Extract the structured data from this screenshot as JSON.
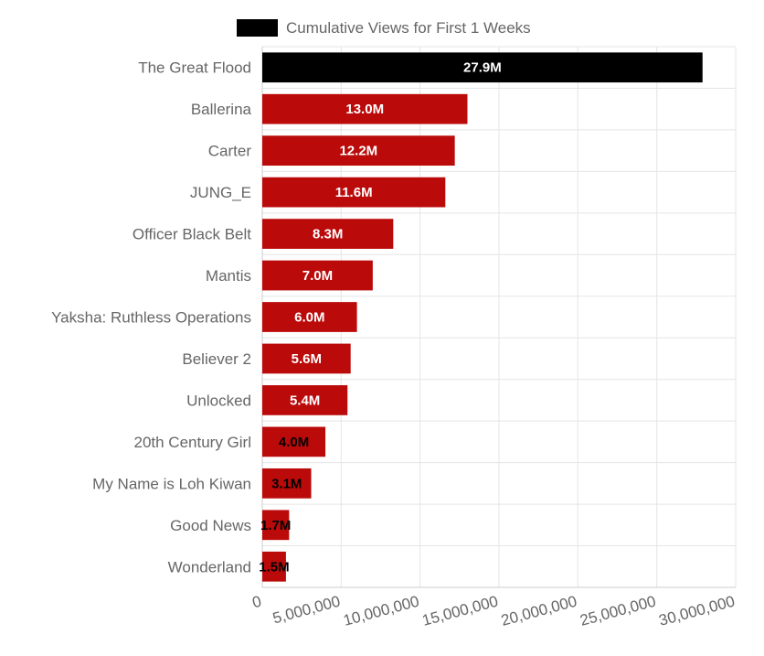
{
  "chart_data": {
    "type": "bar",
    "orientation": "horizontal",
    "categories": [
      "The Great Flood",
      "Ballerina",
      "Carter",
      "JUNG_E",
      "Officer Black Belt",
      "Mantis",
      "Yaksha: Ruthless Operations",
      "Believer 2",
      "Unlocked",
      "20th Century Girl",
      "My Name is Loh Kiwan",
      "Good News",
      "Wonderland"
    ],
    "series": [
      {
        "name": "Cumulative Views for First 1 Weeks",
        "values": [
          27900000,
          13000000,
          12200000,
          11600000,
          8300000,
          7000000,
          6000000,
          5600000,
          5400000,
          4000000,
          3100000,
          1700000,
          1500000
        ]
      }
    ],
    "data_labels": [
      "27.9M",
      "13.0M",
      "12.2M",
      "11.6M",
      "8.3M",
      "7.0M",
      "6.0M",
      "5.6M",
      "5.4M",
      "4.0M",
      "3.1M",
      "1.7M",
      "1.5M"
    ],
    "xlim": [
      0,
      30000000
    ],
    "x_ticks": [
      0,
      5000000,
      10000000,
      15000000,
      20000000,
      25000000,
      30000000
    ],
    "x_tick_labels": [
      "0",
      "5,000,000",
      "10,000,000",
      "15,000,000",
      "20,000,000",
      "25,000,000",
      "30,000,000"
    ],
    "grid": true,
    "legend_position": "top",
    "colors": {
      "highlight_bar": "#000000",
      "bar": "#bb0a0a",
      "grid": "#e5e5e5",
      "axis_text": "#666666",
      "label_inside": "#ffffff",
      "label_outside": "#000000"
    }
  }
}
